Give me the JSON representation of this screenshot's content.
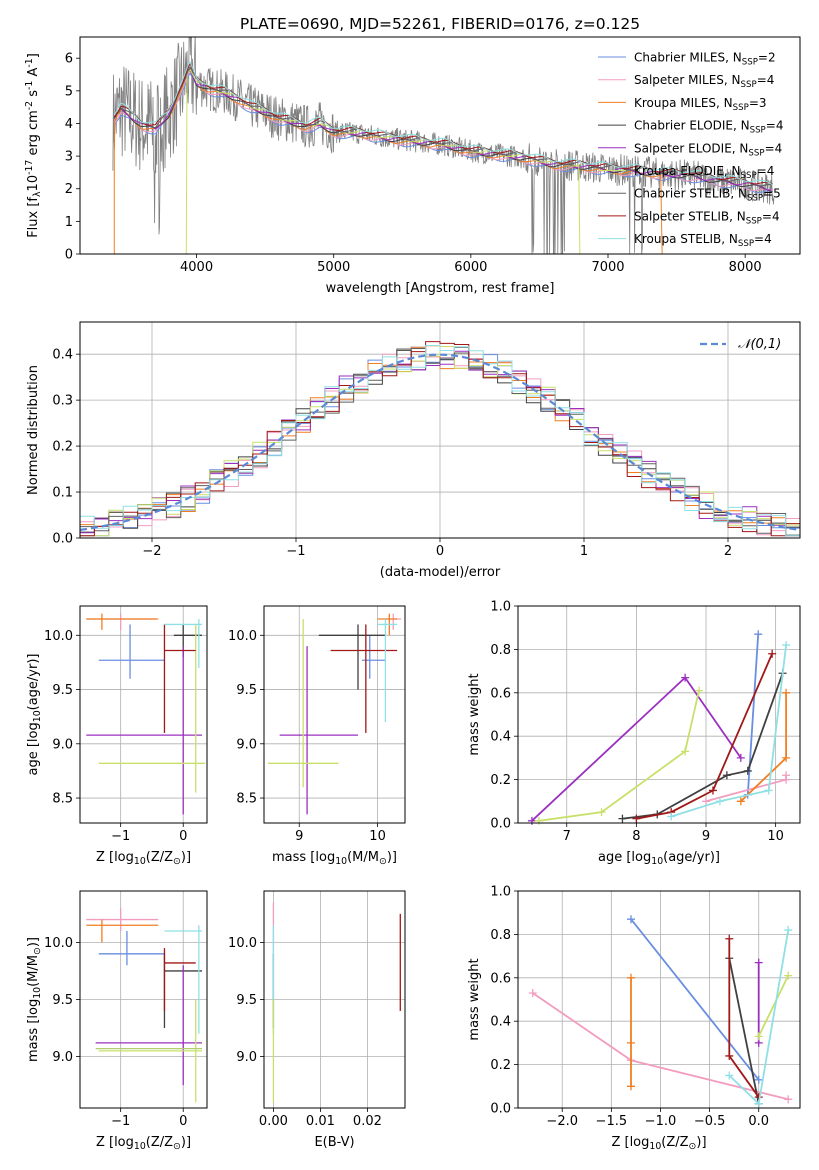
{
  "chart_data": [
    {
      "type": "line",
      "panel": "spectrum",
      "title": "PLATE=0690, MJD=52261, FIBERID=0176, z=0.125",
      "xlabel": "wavelength [Angstrom, rest frame]",
      "ylabel": "Flux [f$_\\lambda$10$^{-17}$ erg cm$^{-2}$ s$^{-1}$ A$^{-1}$]",
      "xlim": [
        3150,
        8400
      ],
      "ylim": [
        0,
        6.65
      ],
      "xticks": [
        "4000",
        "5000",
        "6000",
        "7000",
        "8000"
      ],
      "yticks": [
        "0",
        "1",
        "2",
        "3",
        "4",
        "5",
        "6"
      ],
      "grid": false,
      "legend_position": "upper right",
      "legend_entries": [
        "Chabrier MILES, N$_{SSP}$=2",
        "Salpeter MILES, N$_{SSP}$=4",
        "Kroupa MILES, N$_{SSP}$=3",
        "Chabrier ELODIE, N$_{SSP}$=4",
        "Salpeter ELODIE, N$_{SSP}$=4",
        "Kroupa ELODIE, N$_{SSP}$=4",
        "Chabrier STELIB, N$_{SSP}$=5",
        "Salpeter STELIB, N$_{SSP}$=4",
        "Kroupa STELIB, N$_{SSP}$=4"
      ],
      "data_series_color": "#808080",
      "model_spectrum": {
        "x": [
          3400,
          3450,
          3500,
          3600,
          3700,
          3800,
          3900,
          3950,
          4000,
          4100,
          4200,
          4300,
          4400,
          4500,
          4600,
          4700,
          4800,
          4900,
          5000,
          5200,
          5400,
          5600,
          5800,
          6000,
          6200,
          6400,
          6600,
          6800,
          7000,
          7200,
          7400,
          7600,
          7800,
          8000,
          8200
        ],
        "y": [
          4.15,
          4.45,
          4.3,
          3.95,
          3.85,
          4.3,
          5.2,
          5.7,
          5.25,
          5.05,
          4.95,
          4.75,
          4.5,
          4.35,
          4.15,
          4.05,
          3.9,
          4.0,
          3.75,
          3.7,
          3.55,
          3.45,
          3.35,
          3.15,
          3.05,
          2.95,
          2.75,
          2.7,
          2.6,
          2.55,
          2.45,
          2.4,
          2.25,
          2.15,
          2.0
        ]
      }
    },
    {
      "type": "bar",
      "panel": "residual-histogram",
      "xlabel": "(data-model)/error",
      "ylabel": "Normed distribution",
      "xlim": [
        -2.5,
        2.5
      ],
      "ylim": [
        0,
        0.47
      ],
      "xticks": [
        "−2",
        "−1",
        "0",
        "1",
        "2"
      ],
      "yticks": [
        "0.0",
        "0.1",
        "0.2",
        "0.3",
        "0.4"
      ],
      "grid": true,
      "legend_position": "upper right",
      "legend_entries": [
        "$\\mathcal{N}(0,1)$"
      ],
      "reference_curve": "gaussian N(0,1)",
      "bin_width": 0.1,
      "bin_start": -2.5
    },
    {
      "type": "scatter",
      "panel": "age-vs-Z",
      "xlabel": "Z [log$_{10}$(Z/Z$_\\odot$)]",
      "ylabel": "age  [log$_{10}$(age/yr)]",
      "xlim": [
        -1.65,
        0.38
      ],
      "ylim": [
        8.27,
        10.27
      ],
      "xticks": [
        "−1",
        "0"
      ],
      "yticks": [
        "8.5",
        "9.0",
        "9.5",
        "10.0"
      ],
      "grid": true,
      "crosses": [
        {
          "color": "#6a8ee0",
          "x": -0.85,
          "x_lo": -1.35,
          "x_hi": -0.3,
          "y": 9.77,
          "y_lo": 9.6,
          "y_hi": 10.1
        },
        {
          "color": "#f29cc0",
          "x": -1.0,
          "x_lo": -1.55,
          "x_hi": -0.45,
          "y": 10.15,
          "y_lo": 10.05,
          "y_hi": 10.2
        },
        {
          "color": "#f07f23",
          "x": -1.3,
          "x_lo": -1.55,
          "x_hi": -0.4,
          "y": 10.15,
          "y_lo": 10.05,
          "y_hi": 10.2
        },
        {
          "color": "#404040",
          "x": 0.0,
          "x_lo": -0.15,
          "x_hi": 0.3,
          "y": 10.0,
          "y_lo": 9.8,
          "y_hi": 10.1
        },
        {
          "color": "#9b30c0",
          "x": 0.0,
          "x_lo": -1.55,
          "x_hi": 0.3,
          "y": 9.08,
          "y_lo": 8.35,
          "y_hi": 9.9
        },
        {
          "color": "#c8e06a",
          "x": 0.2,
          "x_lo": -1.35,
          "x_hi": 0.35,
          "y": 8.82,
          "y_lo": 8.55,
          "y_hi": 10.1
        },
        {
          "color": "#a01818",
          "x": -0.3,
          "x_lo": -0.3,
          "x_hi": 0.2,
          "y": 9.86,
          "y_lo": 9.1,
          "y_hi": 10.1
        },
        {
          "color": "#8fe0e4",
          "x": 0.25,
          "x_lo": -0.3,
          "x_hi": 0.3,
          "y": 10.1,
          "y_lo": 9.7,
          "y_hi": 10.15
        }
      ]
    },
    {
      "type": "scatter",
      "panel": "age-vs-mass",
      "xlabel": "mass [log$_{10}$(M/M$_\\odot$)]",
      "ylabel": "",
      "xlim": [
        8.55,
        10.35
      ],
      "ylim": [
        8.27,
        10.27
      ],
      "xticks": [
        "9",
        "10"
      ],
      "yticks": [
        "8.5",
        "9.0",
        "9.5",
        "10.0"
      ],
      "grid": true,
      "crosses": [
        {
          "color": "#6a8ee0",
          "x": 9.9,
          "x_lo": 9.8,
          "x_hi": 10.1,
          "y": 9.77,
          "y_lo": 9.6,
          "y_hi": 10.0
        },
        {
          "color": "#f29cc0",
          "x": 10.2,
          "x_lo": 10.1,
          "x_hi": 10.3,
          "y": 10.15,
          "y_lo": 10.05,
          "y_hi": 10.2
        },
        {
          "color": "#f07f23",
          "x": 10.15,
          "x_lo": 10.0,
          "x_hi": 10.25,
          "y": 10.15,
          "y_lo": 10.0,
          "y_hi": 10.2
        },
        {
          "color": "#404040",
          "x": 9.75,
          "x_lo": 9.25,
          "x_hi": 10.1,
          "y": 10.0,
          "y_lo": 9.5,
          "y_hi": 10.1
        },
        {
          "color": "#9b30c0",
          "x": 9.1,
          "x_lo": 8.75,
          "x_hi": 9.75,
          "y": 9.08,
          "y_lo": 8.35,
          "y_hi": 9.9
        },
        {
          "color": "#c8e06a",
          "x": 9.05,
          "x_lo": 8.6,
          "x_hi": 9.5,
          "y": 8.82,
          "y_lo": 8.6,
          "y_hi": 10.15
        },
        {
          "color": "#a01818",
          "x": 9.85,
          "x_lo": 9.4,
          "x_hi": 10.25,
          "y": 9.86,
          "y_lo": 9.1,
          "y_hi": 10.1
        },
        {
          "color": "#8fe0e4",
          "x": 10.1,
          "x_lo": 10.0,
          "x_hi": 10.25,
          "y": 10.1,
          "y_lo": 9.2,
          "y_hi": 10.15
        }
      ]
    },
    {
      "type": "line",
      "panel": "mass-weight-vs-age",
      "xlabel": "age  [log$_{10}$(age/yr)]",
      "ylabel": "mass weight",
      "xlim": [
        6.3,
        10.35
      ],
      "ylim": [
        0,
        1.0
      ],
      "xticks": [
        "7",
        "8",
        "9",
        "10"
      ],
      "yticks": [
        "0.0",
        "0.2",
        "0.4",
        "0.6",
        "0.8",
        "1.0"
      ],
      "grid": true,
      "series": [
        {
          "color": "#6a8ee0",
          "points": [
            [
              9.6,
              0.13
            ],
            [
              9.75,
              0.87
            ]
          ]
        },
        {
          "color": "#f29cc0",
          "points": [
            [
              9.0,
              0.1
            ],
            [
              10.15,
              0.2
            ],
            [
              10.15,
              0.22
            ]
          ]
        },
        {
          "color": "#f07f23",
          "points": [
            [
              9.5,
              0.1
            ],
            [
              10.15,
              0.3
            ],
            [
              10.15,
              0.6
            ]
          ]
        },
        {
          "color": "#404040",
          "points": [
            [
              7.8,
              0.02
            ],
            [
              8.3,
              0.04
            ],
            [
              9.3,
              0.22
            ],
            [
              9.6,
              0.24
            ],
            [
              10.1,
              0.69
            ]
          ]
        },
        {
          "color": "#9b30c0",
          "points": [
            [
              6.5,
              0.01
            ],
            [
              8.7,
              0.67
            ],
            [
              9.5,
              0.3
            ]
          ]
        },
        {
          "color": "#c8e06a",
          "points": [
            [
              6.6,
              0.01
            ],
            [
              7.5,
              0.05
            ],
            [
              8.7,
              0.33
            ],
            [
              8.9,
              0.61
            ]
          ]
        },
        {
          "color": "#a01818",
          "points": [
            [
              8.0,
              0.02
            ],
            [
              8.5,
              0.05
            ],
            [
              9.1,
              0.15
            ],
            [
              9.95,
              0.78
            ]
          ]
        },
        {
          "color": "#8fe0e4",
          "points": [
            [
              8.5,
              0.03
            ],
            [
              9.2,
              0.1
            ],
            [
              9.9,
              0.15
            ],
            [
              10.15,
              0.82
            ]
          ]
        }
      ]
    },
    {
      "type": "scatter",
      "panel": "mass-vs-Z",
      "xlabel": "Z [log$_{10}$(Z/Z$_\\odot$)]",
      "ylabel": "mass [log$_{10}$(M/M$_\\odot$)]",
      "xlim": [
        -1.65,
        0.38
      ],
      "ylim": [
        8.55,
        10.45
      ],
      "xticks": [
        "−1",
        "0"
      ],
      "yticks": [
        "9.0",
        "9.5",
        "10.0"
      ],
      "grid": true,
      "crosses": [
        {
          "color": "#6a8ee0",
          "x": -0.9,
          "x_lo": -1.35,
          "x_hi": -0.3,
          "y": 9.9,
          "y_lo": 9.8,
          "y_hi": 10.1
        },
        {
          "color": "#f29cc0",
          "x": -1.0,
          "x_lo": -1.55,
          "x_hi": -0.4,
          "y": 10.2,
          "y_lo": 10.1,
          "y_hi": 10.3
        },
        {
          "color": "#f07f23",
          "x": -1.3,
          "x_lo": -1.55,
          "x_hi": -0.4,
          "y": 10.15,
          "y_lo": 10.0,
          "y_hi": 10.2
        },
        {
          "color": "#404040",
          "x": -0.3,
          "x_lo": -0.3,
          "x_hi": 0.3,
          "y": 9.75,
          "y_lo": 9.25,
          "y_hi": 9.9
        },
        {
          "color": "#9b30c0",
          "x": 0.0,
          "x_lo": -1.4,
          "x_hi": 0.3,
          "y": 9.12,
          "y_lo": 8.75,
          "y_hi": 9.8
        },
        {
          "color": "#c8e06a",
          "x": 0.2,
          "x_lo": -1.35,
          "x_hi": 0.3,
          "y": 9.05,
          "y_lo": 8.6,
          "y_hi": 9.5
        },
        {
          "color": "#a01818",
          "x": -0.3,
          "x_lo": -0.3,
          "x_hi": 0.2,
          "y": 9.82,
          "y_lo": 9.4,
          "y_hi": 9.95
        },
        {
          "color": "#8fe0e4",
          "x": 0.25,
          "x_lo": -0.3,
          "x_hi": 0.3,
          "y": 10.1,
          "y_lo": 9.2,
          "y_hi": 10.15
        },
        {
          "color": "#b0d070",
          "x": 0.0,
          "x_lo": -1.4,
          "x_hi": 0.3,
          "y": 9.07,
          "y_lo": 9.07,
          "y_hi": 9.07
        }
      ]
    },
    {
      "type": "scatter",
      "panel": "mass-vs-EBV",
      "xlabel": "E(B-V)",
      "ylabel": "",
      "xlim": [
        -0.002,
        0.028
      ],
      "ylim": [
        8.55,
        10.45
      ],
      "xticks": [
        "0.00",
        "0.01",
        "0.02"
      ],
      "yticks": [
        "9.0",
        "9.5",
        "10.0"
      ],
      "grid": true,
      "crosses": [
        {
          "color": "#f29cc0",
          "x": 0.0,
          "y": 10.2,
          "y_lo": 9.9,
          "y_hi": 10.35
        },
        {
          "color": "#404040",
          "x": 0.0,
          "y": 9.55,
          "y_lo": 9.25,
          "y_hi": 9.9
        },
        {
          "color": "#8fe0e4",
          "x": 0.0,
          "y": 9.7,
          "y_lo": 9.2,
          "y_hi": 10.15
        },
        {
          "color": "#c8e06a",
          "x": 0.0,
          "y": 9.05,
          "y_lo": 8.6,
          "y_hi": 9.5
        },
        {
          "color": "#a01818",
          "x": 0.027,
          "y": 9.82,
          "y_lo": 9.4,
          "y_hi": 10.25
        }
      ]
    },
    {
      "type": "line",
      "panel": "mass-weight-vs-Z",
      "xlabel": "Z [log$_{10}$(Z/Z$_\\odot$)]",
      "ylabel": "mass weight",
      "xlim": [
        -2.45,
        0.42
      ],
      "ylim": [
        0,
        1.0
      ],
      "xticks": [
        "−2.0",
        "−1.5",
        "−1.0",
        "−0.5",
        "0.0"
      ],
      "yticks": [
        "0.0",
        "0.2",
        "0.4",
        "0.6",
        "0.8",
        "1.0"
      ],
      "grid": true,
      "series": [
        {
          "color": "#6a8ee0",
          "points": [
            [
              -1.3,
              0.87
            ],
            [
              0.0,
              0.13
            ]
          ]
        },
        {
          "color": "#f29cc0",
          "points": [
            [
              -2.3,
              0.53
            ],
            [
              -1.3,
              0.22
            ],
            [
              0.3,
              0.04
            ]
          ]
        },
        {
          "color": "#f07f23",
          "points": [
            [
              -1.3,
              0.6
            ],
            [
              -1.3,
              0.3
            ],
            [
              -1.3,
              0.1
            ]
          ]
        },
        {
          "color": "#404040",
          "points": [
            [
              -0.3,
              0.69
            ],
            [
              0.0,
              0.02
            ]
          ]
        },
        {
          "color": "#9b30c0",
          "points": [
            [
              0.0,
              0.67
            ],
            [
              0.0,
              0.3
            ]
          ]
        },
        {
          "color": "#c8e06a",
          "points": [
            [
              0.0,
              0.33
            ],
            [
              0.3,
              0.61
            ]
          ]
        },
        {
          "color": "#a01818",
          "points": [
            [
              -0.3,
              0.78
            ],
            [
              -0.3,
              0.24
            ],
            [
              0.0,
              0.05
            ]
          ]
        },
        {
          "color": "#8fe0e4",
          "points": [
            [
              -0.3,
              0.15
            ],
            [
              0.0,
              0.02
            ],
            [
              0.3,
              0.82
            ]
          ]
        }
      ]
    }
  ]
}
